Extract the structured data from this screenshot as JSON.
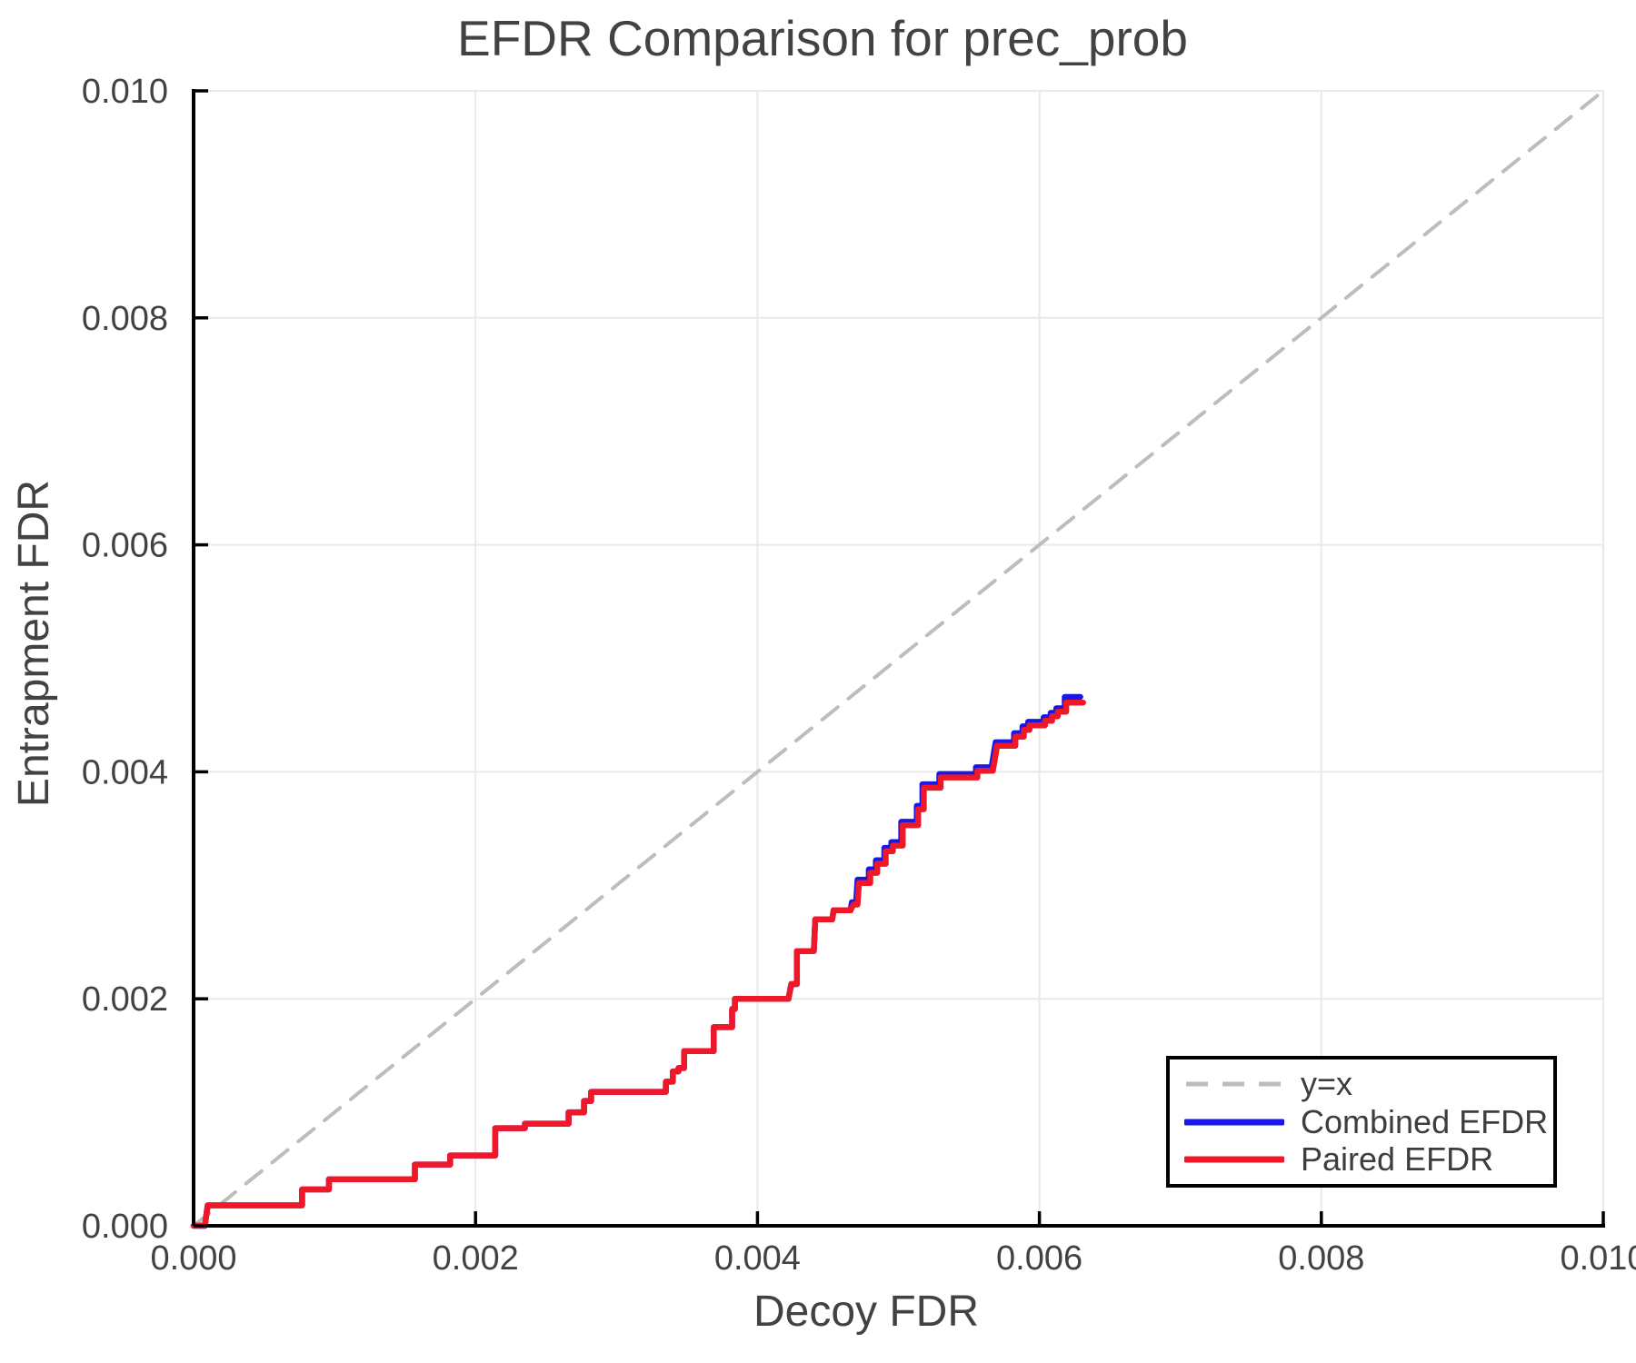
{
  "chart_data": {
    "type": "line",
    "title": "EFDR Comparison for prec_prob",
    "xlabel": "Decoy FDR",
    "ylabel": "Entrapment FDR",
    "xlim": [
      0,
      0.01
    ],
    "ylim": [
      0,
      0.01
    ],
    "x_ticks": [
      0,
      0.002,
      0.004,
      0.006,
      0.008,
      0.01
    ],
    "x_tick_labels": [
      "0.000",
      "0.002",
      "0.004",
      "0.006",
      "0.008",
      "0.010"
    ],
    "y_ticks": [
      0,
      0.002,
      0.004,
      0.006,
      0.008,
      0.01
    ],
    "y_tick_labels": [
      "0.000",
      "0.002",
      "0.004",
      "0.006",
      "0.008",
      "0.010"
    ],
    "grid": true,
    "grid_color": "#e9e9e9",
    "axis_color": "#000000",
    "text_color": "#424242",
    "legend": {
      "position": "lower right",
      "entries": [
        {
          "label": "y=x",
          "color": "#bdbdbd",
          "dash": true
        },
        {
          "label": "Combined EFDR",
          "color": "#1717e8",
          "dash": false
        },
        {
          "label": "Paired EFDR",
          "color": "#ef1828",
          "dash": false
        }
      ]
    },
    "series": [
      {
        "name": "y=x",
        "color": "#bdbdbd",
        "dash": true,
        "points": [
          [
            0,
            0
          ],
          [
            0.01,
            0.01
          ]
        ]
      },
      {
        "name": "Combined EFDR",
        "color": "#1717e8",
        "dash": false,
        "points": [
          [
            0.0,
            0.0
          ],
          [
            8e-05,
            0.0
          ],
          [
            0.0001,
            0.00018
          ],
          [
            0.00077,
            0.00018
          ],
          [
            0.00077,
            0.00032
          ],
          [
            0.00096,
            0.00032
          ],
          [
            0.00096,
            0.00041
          ],
          [
            0.00157,
            0.00041
          ],
          [
            0.00157,
            0.00054
          ],
          [
            0.00182,
            0.00054
          ],
          [
            0.00182,
            0.00062
          ],
          [
            0.00214,
            0.00062
          ],
          [
            0.00214,
            0.00086
          ],
          [
            0.00235,
            0.00086
          ],
          [
            0.00235,
            0.0009
          ],
          [
            0.00266,
            0.0009
          ],
          [
            0.00266,
            0.001
          ],
          [
            0.00277,
            0.001
          ],
          [
            0.00277,
            0.0011
          ],
          [
            0.00282,
            0.0011
          ],
          [
            0.00282,
            0.00118
          ],
          [
            0.00335,
            0.00118
          ],
          [
            0.00335,
            0.00127
          ],
          [
            0.0034,
            0.00127
          ],
          [
            0.0034,
            0.00136
          ],
          [
            0.00344,
            0.00136
          ],
          [
            0.00344,
            0.00139
          ],
          [
            0.00348,
            0.00139
          ],
          [
            0.00348,
            0.00154
          ],
          [
            0.00369,
            0.00154
          ],
          [
            0.00369,
            0.00175
          ],
          [
            0.00382,
            0.00175
          ],
          [
            0.00382,
            0.00191
          ],
          [
            0.00384,
            0.00191
          ],
          [
            0.00384,
            0.002
          ],
          [
            0.00422,
            0.002
          ],
          [
            0.00424,
            0.00213
          ],
          [
            0.00428,
            0.00213
          ],
          [
            0.00428,
            0.00242
          ],
          [
            0.0044,
            0.00242
          ],
          [
            0.00441,
            0.0027
          ],
          [
            0.00453,
            0.0027
          ],
          [
            0.00454,
            0.00278
          ],
          [
            0.00466,
            0.00278
          ],
          [
            0.00467,
            0.00285
          ],
          [
            0.0047,
            0.00285
          ],
          [
            0.00471,
            0.00305
          ],
          [
            0.00479,
            0.00305
          ],
          [
            0.00479,
            0.00314
          ],
          [
            0.00484,
            0.00314
          ],
          [
            0.00484,
            0.00322
          ],
          [
            0.0049,
            0.00322
          ],
          [
            0.0049,
            0.00333
          ],
          [
            0.00495,
            0.00333
          ],
          [
            0.00495,
            0.00338
          ],
          [
            0.00502,
            0.00338
          ],
          [
            0.00502,
            0.00356
          ],
          [
            0.00513,
            0.00356
          ],
          [
            0.00513,
            0.0037
          ],
          [
            0.00517,
            0.0037
          ],
          [
            0.00517,
            0.00389
          ],
          [
            0.00529,
            0.00389
          ],
          [
            0.00529,
            0.00398
          ],
          [
            0.00555,
            0.00398
          ],
          [
            0.00555,
            0.00404
          ],
          [
            0.00566,
            0.00404
          ],
          [
            0.00569,
            0.00426
          ],
          [
            0.00582,
            0.00426
          ],
          [
            0.00582,
            0.00434
          ],
          [
            0.00588,
            0.00434
          ],
          [
            0.00588,
            0.0044
          ],
          [
            0.00592,
            0.0044
          ],
          [
            0.00592,
            0.00444
          ],
          [
            0.00603,
            0.00444
          ],
          [
            0.00603,
            0.00448
          ],
          [
            0.00608,
            0.00448
          ],
          [
            0.00608,
            0.00452
          ],
          [
            0.00612,
            0.00452
          ],
          [
            0.00612,
            0.00456
          ],
          [
            0.00618,
            0.00456
          ],
          [
            0.00618,
            0.00466
          ],
          [
            0.00629,
            0.00466
          ]
        ]
      },
      {
        "name": "Paired EFDR",
        "color": "#ef1828",
        "dash": false,
        "points": [
          [
            0.0,
            0.0
          ],
          [
            8e-05,
            0.0
          ],
          [
            0.0001,
            0.00018
          ],
          [
            0.00077,
            0.00018
          ],
          [
            0.00077,
            0.00032
          ],
          [
            0.00096,
            0.00032
          ],
          [
            0.00096,
            0.00041
          ],
          [
            0.00157,
            0.00041
          ],
          [
            0.00157,
            0.00054
          ],
          [
            0.00182,
            0.00054
          ],
          [
            0.00182,
            0.00062
          ],
          [
            0.00214,
            0.00062
          ],
          [
            0.00214,
            0.00086
          ],
          [
            0.00235,
            0.00086
          ],
          [
            0.00235,
            0.0009
          ],
          [
            0.00266,
            0.0009
          ],
          [
            0.00266,
            0.001
          ],
          [
            0.00277,
            0.001
          ],
          [
            0.00277,
            0.0011
          ],
          [
            0.00282,
            0.0011
          ],
          [
            0.00282,
            0.00118
          ],
          [
            0.00335,
            0.00118
          ],
          [
            0.00335,
            0.00127
          ],
          [
            0.0034,
            0.00127
          ],
          [
            0.0034,
            0.00136
          ],
          [
            0.00344,
            0.00136
          ],
          [
            0.00344,
            0.00139
          ],
          [
            0.00348,
            0.00139
          ],
          [
            0.00348,
            0.00154
          ],
          [
            0.00369,
            0.00154
          ],
          [
            0.00369,
            0.00175
          ],
          [
            0.00382,
            0.00175
          ],
          [
            0.00382,
            0.00191
          ],
          [
            0.00384,
            0.00191
          ],
          [
            0.00384,
            0.002
          ],
          [
            0.00422,
            0.002
          ],
          [
            0.00424,
            0.00213
          ],
          [
            0.00428,
            0.00213
          ],
          [
            0.00428,
            0.00242
          ],
          [
            0.0044,
            0.00242
          ],
          [
            0.00441,
            0.0027
          ],
          [
            0.00453,
            0.0027
          ],
          [
            0.00454,
            0.00278
          ],
          [
            0.00466,
            0.00278
          ],
          [
            0.00468,
            0.00283
          ],
          [
            0.00471,
            0.00283
          ],
          [
            0.00472,
            0.00302
          ],
          [
            0.0048,
            0.00302
          ],
          [
            0.0048,
            0.00311
          ],
          [
            0.00485,
            0.00311
          ],
          [
            0.00485,
            0.00319
          ],
          [
            0.00491,
            0.00319
          ],
          [
            0.00491,
            0.0033
          ],
          [
            0.00496,
            0.0033
          ],
          [
            0.00496,
            0.00335
          ],
          [
            0.00503,
            0.00335
          ],
          [
            0.00503,
            0.00353
          ],
          [
            0.00514,
            0.00353
          ],
          [
            0.00514,
            0.00367
          ],
          [
            0.00518,
            0.00367
          ],
          [
            0.00518,
            0.00386
          ],
          [
            0.0053,
            0.00386
          ],
          [
            0.0053,
            0.00395
          ],
          [
            0.00556,
            0.00395
          ],
          [
            0.00556,
            0.00401
          ],
          [
            0.00567,
            0.00401
          ],
          [
            0.0057,
            0.00423
          ],
          [
            0.00583,
            0.00423
          ],
          [
            0.00583,
            0.00431
          ],
          [
            0.00589,
            0.00431
          ],
          [
            0.00589,
            0.00437
          ],
          [
            0.00593,
            0.00437
          ],
          [
            0.00593,
            0.00441
          ],
          [
            0.00604,
            0.00441
          ],
          [
            0.00604,
            0.00445
          ],
          [
            0.00609,
            0.00445
          ],
          [
            0.00609,
            0.00449
          ],
          [
            0.00613,
            0.00449
          ],
          [
            0.00613,
            0.00453
          ],
          [
            0.00619,
            0.00453
          ],
          [
            0.00619,
            0.00461
          ],
          [
            0.00631,
            0.00461
          ]
        ]
      }
    ]
  }
}
